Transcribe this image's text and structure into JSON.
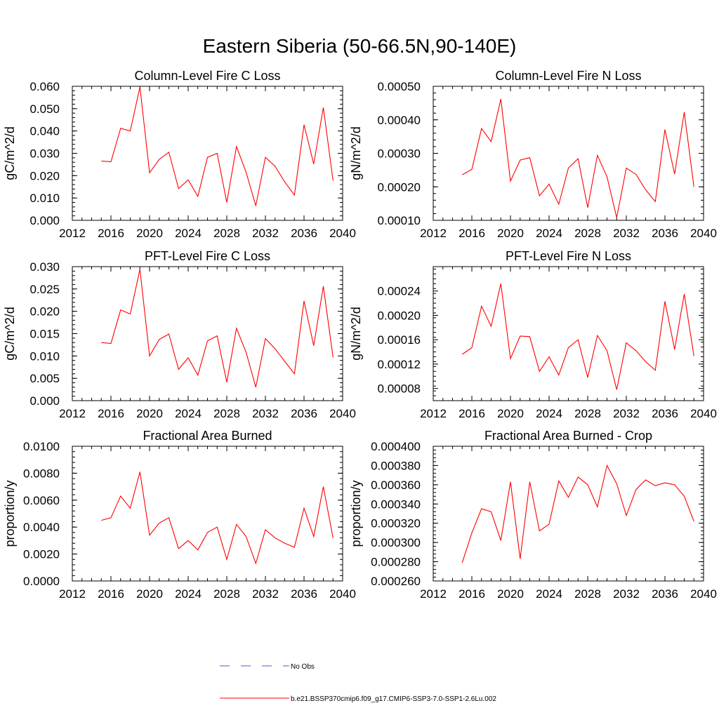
{
  "page": {
    "title": "Eastern Siberia (50-66.5N,90-140E)",
    "legend": [
      {
        "label": "No Obs",
        "color": "#5555cc",
        "style": "dashed"
      },
      {
        "label": "b.e21.BSSP370cmip6.f09_g17.CMIP6-SSP3-7.0-SSP1-2.6Lu.002",
        "color": "#ff0000",
        "style": "solid"
      }
    ]
  },
  "chart_data": [
    {
      "type": "line",
      "title": "Column-Level Fire C Loss",
      "ylabel": "gC/m^2/d",
      "xlim": [
        2012,
        2040
      ],
      "ylim": [
        0.0,
        0.06
      ],
      "xticks": [
        "2012",
        "2016",
        "2020",
        "2024",
        "2028",
        "2032",
        "2036",
        "2040"
      ],
      "yticks": [
        "0.000",
        "0.010",
        "0.020",
        "0.030",
        "0.040",
        "0.050",
        "0.060"
      ],
      "x": [
        2015,
        2016,
        2017,
        2018,
        2019,
        2020,
        2021,
        2022,
        2023,
        2024,
        2025,
        2026,
        2027,
        2028,
        2029,
        2030,
        2031,
        2032,
        2033,
        2034,
        2035,
        2036,
        2037,
        2038,
        2039
      ],
      "series": [
        {
          "color": "#ff0000",
          "values": [
            0.0265,
            0.0262,
            0.0412,
            0.04,
            0.0597,
            0.0213,
            0.0273,
            0.0305,
            0.0142,
            0.0181,
            0.0107,
            0.0282,
            0.03,
            0.008,
            0.033,
            0.0215,
            0.0065,
            0.0282,
            0.0242,
            0.0172,
            0.0113,
            0.0428,
            0.0252,
            0.0505,
            0.0178
          ]
        }
      ]
    },
    {
      "type": "line",
      "title": "Column-Level Fire N Loss",
      "ylabel": "gN/m^2/d",
      "xlim": [
        2012,
        2040
      ],
      "ylim": [
        0.0001,
        0.0005
      ],
      "xticks": [
        "2012",
        "2016",
        "2020",
        "2024",
        "2028",
        "2032",
        "2036",
        "2040"
      ],
      "yticks": [
        "0.00010",
        "0.00020",
        "0.00030",
        "0.00040",
        "0.00050"
      ],
      "x": [
        2015,
        2016,
        2017,
        2018,
        2019,
        2020,
        2021,
        2022,
        2023,
        2024,
        2025,
        2026,
        2027,
        2028,
        2029,
        2030,
        2031,
        2032,
        2033,
        2034,
        2035,
        2036,
        2037,
        2038,
        2039
      ],
      "series": [
        {
          "color": "#ff0000",
          "values": [
            0.000236,
            0.000252,
            0.000374,
            0.000335,
            0.000462,
            0.000217,
            0.00028,
            0.000287,
            0.000173,
            0.000208,
            0.000148,
            0.000256,
            0.000284,
            0.000138,
            0.000294,
            0.00023,
            0.000108,
            0.000256,
            0.000237,
            0.000191,
            0.000156,
            0.000371,
            0.000238,
            0.000423,
            0.0002
          ]
        }
      ]
    },
    {
      "type": "line",
      "title": "PFT-Level Fire C Loss",
      "ylabel": "gC/m^2/d",
      "xlim": [
        2012,
        2040
      ],
      "ylim": [
        0.0,
        0.03
      ],
      "xticks": [
        "2012",
        "2016",
        "2020",
        "2024",
        "2028",
        "2032",
        "2036",
        "2040"
      ],
      "yticks": [
        "0.000",
        "0.005",
        "0.010",
        "0.015",
        "0.020",
        "0.025",
        "0.030"
      ],
      "x": [
        2015,
        2016,
        2017,
        2018,
        2019,
        2020,
        2021,
        2022,
        2023,
        2024,
        2025,
        2026,
        2027,
        2028,
        2029,
        2030,
        2031,
        2032,
        2033,
        2034,
        2035,
        2036,
        2037,
        2038,
        2039
      ],
      "series": [
        {
          "color": "#ff0000",
          "values": [
            0.013,
            0.0128,
            0.0203,
            0.0194,
            0.0294,
            0.01,
            0.0137,
            0.0149,
            0.007,
            0.0096,
            0.0057,
            0.0134,
            0.0145,
            0.0041,
            0.0162,
            0.0108,
            0.003,
            0.0139,
            0.0116,
            0.0088,
            0.006,
            0.0223,
            0.0123,
            0.0256,
            0.0097
          ]
        }
      ]
    },
    {
      "type": "line",
      "title": "PFT-Level Fire N Loss",
      "ylabel": "gN/m^2/d",
      "xlim": [
        2012,
        2040
      ],
      "ylim": [
        6e-05,
        0.00028
      ],
      "xticks": [
        "2012",
        "2016",
        "2020",
        "2024",
        "2028",
        "2032",
        "2036",
        "2040"
      ],
      "yticks": [
        "0.00008",
        "0.00012",
        "0.00016",
        "0.00020",
        "0.00024"
      ],
      "x": [
        2015,
        2016,
        2017,
        2018,
        2019,
        2020,
        2021,
        2022,
        2023,
        2024,
        2025,
        2026,
        2027,
        2028,
        2029,
        2030,
        2031,
        2032,
        2033,
        2034,
        2035,
        2036,
        2037,
        2038,
        2039
      ],
      "series": [
        {
          "color": "#ff0000",
          "values": [
            0.000136,
            0.000147,
            0.000215,
            0.000182,
            0.000252,
            0.000129,
            0.000166,
            0.000165,
            0.000108,
            0.000132,
            0.000102,
            0.000147,
            0.00016,
            9.8e-05,
            0.000167,
            0.000142,
            7.8e-05,
            0.000155,
            0.000142,
            0.000124,
            0.00011,
            0.000223,
            0.000144,
            0.000235,
            0.000133
          ]
        }
      ]
    },
    {
      "type": "line",
      "title": "Fractional Area Burned",
      "ylabel": "proportion/y",
      "xlim": [
        2012,
        2040
      ],
      "ylim": [
        0.0,
        0.01
      ],
      "xticks": [
        "2012",
        "2016",
        "2020",
        "2024",
        "2028",
        "2032",
        "2036",
        "2040"
      ],
      "yticks": [
        "0.0000",
        "0.0020",
        "0.0040",
        "0.0060",
        "0.0080",
        "0.0100"
      ],
      "x": [
        2015,
        2016,
        2017,
        2018,
        2019,
        2020,
        2021,
        2022,
        2023,
        2024,
        2025,
        2026,
        2027,
        2028,
        2029,
        2030,
        2031,
        2032,
        2033,
        2034,
        2035,
        2036,
        2037,
        2038,
        2039
      ],
      "series": [
        {
          "color": "#ff0000",
          "values": [
            0.0045,
            0.0047,
            0.0063,
            0.0054,
            0.0081,
            0.0034,
            0.0043,
            0.0047,
            0.0024,
            0.003,
            0.0023,
            0.0036,
            0.004,
            0.0016,
            0.0042,
            0.0033,
            0.0013,
            0.0038,
            0.0032,
            0.0028,
            0.0025,
            0.0054,
            0.0033,
            0.007,
            0.0032
          ]
        }
      ]
    },
    {
      "type": "line",
      "title": "Fractional Area Burned - Crop",
      "ylabel": "proportion/y",
      "xlim": [
        2012,
        2040
      ],
      "ylim": [
        0.00026,
        0.0004
      ],
      "xticks": [
        "2012",
        "2016",
        "2020",
        "2024",
        "2028",
        "2032",
        "2036",
        "2040"
      ],
      "yticks": [
        "0.000260",
        "0.000280",
        "0.000300",
        "0.000320",
        "0.000340",
        "0.000360",
        "0.000380",
        "0.000400"
      ],
      "x": [
        2015,
        2016,
        2017,
        2018,
        2019,
        2020,
        2021,
        2022,
        2023,
        2024,
        2025,
        2026,
        2027,
        2028,
        2029,
        2030,
        2031,
        2032,
        2033,
        2034,
        2035,
        2036,
        2037,
        2038,
        2039
      ],
      "series": [
        {
          "color": "#ff0000",
          "values": [
            0.000279,
            0.00031,
            0.000335,
            0.000332,
            0.000302,
            0.000363,
            0.000283,
            0.000363,
            0.000312,
            0.000319,
            0.000364,
            0.000347,
            0.000368,
            0.00036,
            0.000337,
            0.00038,
            0.000361,
            0.000328,
            0.000355,
            0.000365,
            0.000359,
            0.000362,
            0.00036,
            0.000348,
            0.000322
          ]
        }
      ]
    }
  ]
}
